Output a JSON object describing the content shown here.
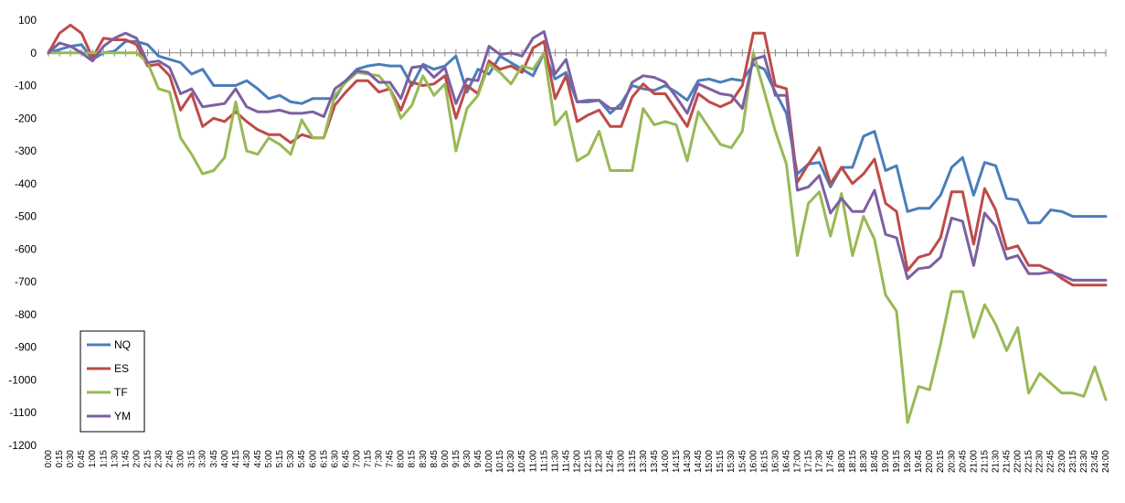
{
  "chart_data": {
    "type": "line",
    "title": "",
    "xlabel": "",
    "ylabel": "",
    "ylim": [
      -1200,
      100
    ],
    "yticks": [
      100,
      0,
      -100,
      -200,
      -300,
      -400,
      -500,
      -600,
      -700,
      -800,
      -900,
      -1000,
      -1100,
      -1200
    ],
    "grid": false,
    "legend_position": "bottom-left",
    "categories": [
      "0:00",
      "0:15",
      "0:30",
      "0:45",
      "1:00",
      "1:15",
      "1:30",
      "1:45",
      "2:00",
      "2:15",
      "2:30",
      "2:45",
      "3:00",
      "3:15",
      "3:30",
      "3:45",
      "4:00",
      "4:15",
      "4:30",
      "4:45",
      "5:00",
      "5:15",
      "5:30",
      "5:45",
      "6:00",
      "6:15",
      "6:30",
      "6:45",
      "7:00",
      "7:15",
      "7:30",
      "7:45",
      "8:00",
      "8:15",
      "8:30",
      "8:45",
      "9:00",
      "9:15",
      "9:30",
      "9:45",
      "10:00",
      "10:15",
      "10:30",
      "10:45",
      "11:00",
      "11:15",
      "11:30",
      "11:45",
      "12:00",
      "12:15",
      "12:30",
      "12:45",
      "13:00",
      "13:15",
      "13:30",
      "13:45",
      "14:00",
      "14:15",
      "14:30",
      "14:45",
      "15:00",
      "15:15",
      "15:30",
      "15:45",
      "16:00",
      "16:15",
      "16:30",
      "16:45",
      "17:00",
      "17:15",
      "17:30",
      "17:45",
      "18:00",
      "18:15",
      "18:30",
      "18:45",
      "19:00",
      "19:15",
      "19:30",
      "19:45",
      "20:00",
      "20:15",
      "20:30",
      "20:45",
      "21:00",
      "21:15",
      "21:30",
      "21:45",
      "22:00",
      "22:15",
      "22:30",
      "22:45",
      "23:00",
      "23:15",
      "23:30",
      "23:45",
      "24:00"
    ],
    "series": [
      {
        "name": "NQ",
        "color": "#4a7ebb",
        "values": [
          0,
          10,
          20,
          25,
          -20,
          0,
          5,
          35,
          35,
          25,
          -10,
          -20,
          -30,
          -65,
          -50,
          -100,
          -100,
          -100,
          -85,
          -110,
          -140,
          -130,
          -150,
          -155,
          -140,
          -140,
          -140,
          -85,
          -50,
          -40,
          -35,
          -40,
          -40,
          -100,
          -35,
          -50,
          -40,
          -10,
          -120,
          -50,
          -65,
          -10,
          -30,
          -50,
          -70,
          0,
          -80,
          -60,
          -150,
          -145,
          -145,
          -185,
          -155,
          -100,
          -110,
          -115,
          -100,
          -120,
          -145,
          -85,
          -80,
          -90,
          -80,
          -85,
          -35,
          -50,
          -120,
          -185,
          -370,
          -340,
          -335,
          -410,
          -350,
          -350,
          -255,
          -240,
          -360,
          -345,
          -485,
          -475,
          -475,
          -435,
          -350,
          -320,
          -435,
          -335,
          -345,
          -445,
          -450,
          -520,
          -520,
          -480,
          -485,
          -500,
          -500,
          -500,
          -500
        ]
      },
      {
        "name": "ES",
        "color": "#be4b48",
        "values": [
          0,
          60,
          85,
          60,
          -15,
          45,
          40,
          40,
          25,
          -40,
          -35,
          -70,
          -175,
          -125,
          -225,
          -200,
          -210,
          -180,
          -210,
          -235,
          -250,
          -250,
          -275,
          -250,
          -260,
          -260,
          -160,
          -120,
          -85,
          -85,
          -120,
          -110,
          -175,
          -90,
          -100,
          -95,
          -70,
          -200,
          -100,
          -125,
          -25,
          -50,
          -40,
          -60,
          15,
          35,
          -140,
          -70,
          -210,
          -190,
          -175,
          -225,
          -225,
          -135,
          -95,
          -125,
          -125,
          -175,
          -225,
          -125,
          -150,
          -165,
          -150,
          -100,
          60,
          60,
          -100,
          -110,
          -395,
          -340,
          -290,
          -400,
          -350,
          -400,
          -370,
          -325,
          -460,
          -485,
          -665,
          -625,
          -615,
          -565,
          -425,
          -425,
          -585,
          -415,
          -480,
          -600,
          -590,
          -650,
          -650,
          -665,
          -690,
          -710,
          -710,
          -710,
          -710
        ]
      },
      {
        "name": "TF",
        "color": "#98b954",
        "values": [
          0,
          0,
          0,
          0,
          0,
          0,
          0,
          0,
          0,
          -30,
          -110,
          -120,
          -260,
          -310,
          -370,
          -360,
          -320,
          -150,
          -300,
          -310,
          -260,
          -280,
          -310,
          -205,
          -260,
          -260,
          -130,
          -90,
          -60,
          -65,
          -70,
          -110,
          -200,
          -160,
          -70,
          -130,
          -95,
          -300,
          -170,
          -130,
          -35,
          -60,
          -95,
          -40,
          -50,
          0,
          -220,
          -180,
          -330,
          -310,
          -240,
          -360,
          -360,
          -360,
          -170,
          -220,
          -210,
          -220,
          -330,
          -180,
          -230,
          -280,
          -290,
          -240,
          0,
          -120,
          -240,
          -340,
          -620,
          -460,
          -425,
          -560,
          -430,
          -620,
          -500,
          -570,
          -740,
          -790,
          -1130,
          -1020,
          -1030,
          -890,
          -730,
          -730,
          -870,
          -770,
          -830,
          -910,
          -840,
          -1040,
          -980,
          -1010,
          -1040,
          -1040,
          -1050,
          -960,
          -1060
        ]
      },
      {
        "name": "YM",
        "color": "#7d60a0",
        "values": [
          0,
          30,
          20,
          0,
          -25,
          20,
          45,
          60,
          45,
          -30,
          -25,
          -45,
          -125,
          -110,
          -165,
          -160,
          -155,
          -110,
          -165,
          -180,
          -180,
          -175,
          -185,
          -185,
          -180,
          -195,
          -110,
          -85,
          -55,
          -60,
          -90,
          -90,
          -140,
          -45,
          -40,
          -75,
          -45,
          -155,
          -80,
          -85,
          20,
          -5,
          0,
          -10,
          45,
          65,
          -65,
          -20,
          -150,
          -150,
          -145,
          -170,
          -170,
          -90,
          -70,
          -75,
          -90,
          -135,
          -185,
          -95,
          -110,
          -125,
          -130,
          -170,
          -20,
          -10,
          -130,
          -130,
          -420,
          -410,
          -375,
          -490,
          -445,
          -485,
          -485,
          -420,
          -555,
          -565,
          -690,
          -660,
          -655,
          -625,
          -505,
          -515,
          -650,
          -490,
          -530,
          -630,
          -620,
          -675,
          -675,
          -670,
          -680,
          -695,
          -695,
          -695,
          -695
        ]
      }
    ]
  }
}
